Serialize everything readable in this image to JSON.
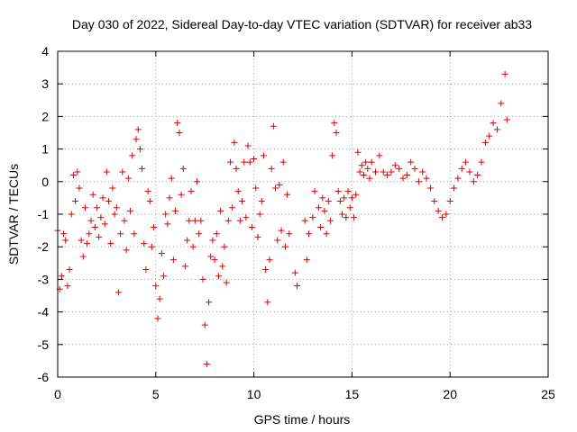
{
  "chart_data": {
    "type": "scatter",
    "title": "Day 030 of 2022, Sidereal Day-to-day VTEC variation (SDTVAR) for receiver ab33",
    "xlabel": "GPS time / hours",
    "ylabel": "SDTVAR / TECUs",
    "xlim": [
      0,
      25
    ],
    "ylim": [
      -6,
      4
    ],
    "xticks": [
      "0",
      "5",
      "10",
      "15",
      "20",
      "25"
    ],
    "yticks": [
      "4",
      "3",
      "2",
      "1",
      "0",
      "-1",
      "-2",
      "-3",
      "-4",
      "-5",
      "-6"
    ],
    "grid": true,
    "marker": "+",
    "color": "#e00000",
    "series": [
      {
        "name": "SDTVAR",
        "points": [
          [
            0.0,
            -1.5
          ],
          [
            0.1,
            -3.3
          ],
          [
            0.2,
            -2.9
          ],
          [
            0.3,
            -1.6
          ],
          [
            0.4,
            -1.8
          ],
          [
            0.5,
            -3.2
          ],
          [
            0.6,
            -2.7
          ],
          [
            0.7,
            -1.0
          ],
          [
            0.8,
            0.2
          ],
          [
            0.9,
            -0.6
          ],
          [
            1.0,
            0.3
          ],
          [
            1.1,
            -0.2
          ],
          [
            1.2,
            -1.8
          ],
          [
            1.3,
            -2.3
          ],
          [
            1.4,
            -0.8
          ],
          [
            1.5,
            -1.9
          ],
          [
            1.6,
            -1.6
          ],
          [
            1.7,
            -1.2
          ],
          [
            1.8,
            -0.4
          ],
          [
            1.9,
            -1.4
          ],
          [
            2.0,
            -0.8
          ],
          [
            2.1,
            -1.7
          ],
          [
            2.2,
            -1.1
          ],
          [
            2.3,
            -0.5
          ],
          [
            2.4,
            -1.3
          ],
          [
            2.5,
            0.3
          ],
          [
            2.6,
            -0.6
          ],
          [
            2.7,
            -1.9
          ],
          [
            2.8,
            -0.2
          ],
          [
            2.9,
            -1.0
          ],
          [
            3.0,
            -0.8
          ],
          [
            3.1,
            -3.4
          ],
          [
            3.2,
            -1.6
          ],
          [
            3.3,
            0.3
          ],
          [
            3.4,
            -1.2
          ],
          [
            3.5,
            -2.1
          ],
          [
            3.6,
            0.1
          ],
          [
            3.7,
            -0.9
          ],
          [
            3.8,
            0.8
          ],
          [
            3.9,
            -1.6
          ],
          [
            4.0,
            1.3
          ],
          [
            4.1,
            1.6
          ],
          [
            4.2,
            1.0
          ],
          [
            4.3,
            0.4
          ],
          [
            4.4,
            -1.9
          ],
          [
            4.5,
            -2.7
          ],
          [
            4.6,
            -0.3
          ],
          [
            4.7,
            -0.6
          ],
          [
            4.8,
            -2.0
          ],
          [
            4.9,
            -1.4
          ],
          [
            5.0,
            -3.2
          ],
          [
            5.1,
            -4.2
          ],
          [
            5.2,
            -3.6
          ],
          [
            5.3,
            -2.2
          ],
          [
            5.4,
            -2.9
          ],
          [
            5.5,
            -1.0
          ],
          [
            5.6,
            -1.3
          ],
          [
            5.7,
            -0.5
          ],
          [
            5.8,
            0.1
          ],
          [
            5.9,
            -2.4
          ],
          [
            6.0,
            -0.9
          ],
          [
            6.1,
            1.8
          ],
          [
            6.2,
            1.5
          ],
          [
            6.3,
            -0.4
          ],
          [
            6.4,
            0.4
          ],
          [
            6.5,
            -2.6
          ],
          [
            6.6,
            -1.8
          ],
          [
            6.7,
            -1.2
          ],
          [
            6.8,
            -0.3
          ],
          [
            6.9,
            -2.0
          ],
          [
            7.0,
            -1.2
          ],
          [
            7.1,
            0.0
          ],
          [
            7.2,
            -1.6
          ],
          [
            7.3,
            -1.2
          ],
          [
            7.4,
            -3.0
          ],
          [
            7.5,
            -4.4
          ],
          [
            7.6,
            -5.6
          ],
          [
            7.7,
            -3.7
          ],
          [
            7.8,
            -2.3
          ],
          [
            7.9,
            -1.8
          ],
          [
            8.0,
            -2.4
          ],
          [
            8.1,
            -1.6
          ],
          [
            8.2,
            -2.9
          ],
          [
            8.3,
            -0.9
          ],
          [
            8.4,
            -2.6
          ],
          [
            8.5,
            -2.0
          ],
          [
            8.6,
            -3.1
          ],
          [
            8.7,
            -1.2
          ],
          [
            8.8,
            0.6
          ],
          [
            8.9,
            -0.8
          ],
          [
            9.0,
            1.2
          ],
          [
            9.1,
            0.4
          ],
          [
            9.2,
            -0.3
          ],
          [
            9.3,
            -1.2
          ],
          [
            9.4,
            -0.6
          ],
          [
            9.5,
            0.6
          ],
          [
            9.6,
            -1.1
          ],
          [
            9.7,
            1.1
          ],
          [
            9.8,
            0.6
          ],
          [
            9.9,
            -1.4
          ],
          [
            10.0,
            0.7
          ],
          [
            10.1,
            -0.2
          ],
          [
            10.2,
            -1.7
          ],
          [
            10.3,
            -1.0
          ],
          [
            10.4,
            -0.6
          ],
          [
            10.5,
            0.8
          ],
          [
            10.6,
            -2.7
          ],
          [
            10.7,
            -3.7
          ],
          [
            10.8,
            -2.4
          ],
          [
            10.9,
            0.4
          ],
          [
            11.0,
            1.7
          ],
          [
            11.1,
            -0.2
          ],
          [
            11.2,
            -1.8
          ],
          [
            11.3,
            -0.1
          ],
          [
            11.4,
            -1.5
          ],
          [
            11.5,
            0.6
          ],
          [
            11.6,
            -2.0
          ],
          [
            11.7,
            -0.4
          ],
          [
            11.8,
            -1.6
          ],
          [
            12.1,
            -2.8
          ],
          [
            12.2,
            -3.2
          ],
          [
            12.6,
            -1.2
          ],
          [
            12.7,
            -2.4
          ],
          [
            12.8,
            -1.6
          ],
          [
            13.0,
            -1.1
          ],
          [
            13.1,
            -0.3
          ],
          [
            13.3,
            -0.8
          ],
          [
            13.4,
            -1.4
          ],
          [
            13.5,
            -0.5
          ],
          [
            13.6,
            -0.9
          ],
          [
            13.7,
            -1.6
          ],
          [
            13.8,
            -0.6
          ],
          [
            13.9,
            -1.2
          ],
          [
            14.0,
            0.8
          ],
          [
            14.1,
            1.8
          ],
          [
            14.2,
            1.5
          ],
          [
            14.3,
            -0.3
          ],
          [
            14.4,
            -0.6
          ],
          [
            14.5,
            -1.0
          ],
          [
            14.6,
            -0.5
          ],
          [
            14.7,
            -1.1
          ],
          [
            14.8,
            -0.3
          ],
          [
            14.9,
            -0.8
          ],
          [
            15.0,
            -0.5
          ],
          [
            15.1,
            -1.1
          ],
          [
            15.2,
            -0.4
          ],
          [
            15.3,
            0.9
          ],
          [
            15.4,
            0.3
          ],
          [
            15.5,
            0.5
          ],
          [
            15.6,
            0.2
          ],
          [
            15.7,
            0.6
          ],
          [
            15.8,
            0.4
          ],
          [
            15.9,
            0.1
          ],
          [
            16.0,
            0.6
          ],
          [
            16.2,
            0.3
          ],
          [
            16.4,
            0.8
          ],
          [
            16.6,
            0.3
          ],
          [
            16.8,
            0.2
          ],
          [
            17.0,
            0.3
          ],
          [
            17.2,
            0.5
          ],
          [
            17.4,
            0.4
          ],
          [
            17.6,
            0.1
          ],
          [
            17.8,
            0.2
          ],
          [
            18.0,
            0.6
          ],
          [
            18.2,
            0.4
          ],
          [
            18.4,
            0.0
          ],
          [
            18.6,
            0.3
          ],
          [
            18.8,
            0.1
          ],
          [
            19.0,
            -0.2
          ],
          [
            19.2,
            -0.6
          ],
          [
            19.4,
            -0.9
          ],
          [
            19.6,
            -1.1
          ],
          [
            19.8,
            -1.0
          ],
          [
            20.0,
            -0.6
          ],
          [
            20.2,
            -0.2
          ],
          [
            20.4,
            0.1
          ],
          [
            20.6,
            0.4
          ],
          [
            20.8,
            0.6
          ],
          [
            21.0,
            0.3
          ],
          [
            21.2,
            0.0
          ],
          [
            21.4,
            0.2
          ],
          [
            21.6,
            0.6
          ],
          [
            21.8,
            1.2
          ],
          [
            22.0,
            1.4
          ],
          [
            22.2,
            1.8
          ],
          [
            22.4,
            1.6
          ],
          [
            22.6,
            2.4
          ],
          [
            22.8,
            3.3
          ],
          [
            22.9,
            1.9
          ]
        ]
      }
    ]
  }
}
